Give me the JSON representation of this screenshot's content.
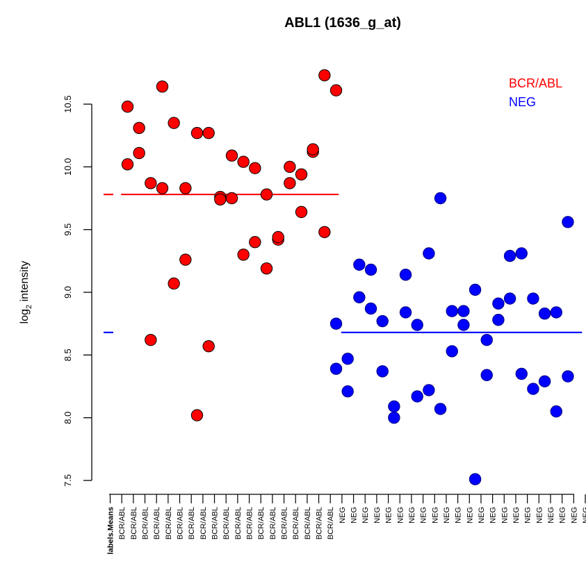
{
  "chart_data": {
    "type": "scatter",
    "title": "ABL1 (1636_g_at)",
    "ylabel_main": "log",
    "ylabel_sub": "2",
    "ylabel_rest": " intensity",
    "ylim": [
      7.5,
      10.75
    ],
    "yticks": [
      7.5,
      8.0,
      8.5,
      9.0,
      9.5,
      10.0,
      10.5
    ],
    "ytick_labels": [
      "7.5",
      "8.0",
      "8.5",
      "9.0",
      "9.5",
      "10.0",
      "10.5"
    ],
    "categories": [
      "labels.Means",
      "BCR/ABL",
      "BCR/ABL",
      "BCR/ABL",
      "BCR/ABL",
      "BCR/ABL",
      "BCR/ABL",
      "BCR/ABL",
      "BCR/ABL",
      "BCR/ABL",
      "BCR/ABL",
      "BCR/ABL",
      "BCR/ABL",
      "BCR/ABL",
      "BCR/ABL",
      "BCR/ABL",
      "BCR/ABL",
      "BCR/ABL",
      "BCR/ABL",
      "BCR/ABL",
      "NEG",
      "NEG",
      "NEG",
      "NEG",
      "NEG",
      "NEG",
      "NEG",
      "NEG",
      "NEG",
      "NEG",
      "NEG",
      "NEG",
      "NEG",
      "NEG",
      "NEG",
      "NEG",
      "NEG",
      "NEG",
      "NEG",
      "NEG",
      "NEG",
      "NEG"
    ],
    "means": [
      {
        "name": "BCR/ABL",
        "value": 9.78,
        "color": "#ff0000"
      },
      {
        "name": "NEG",
        "value": 8.68,
        "color": "#0000ff"
      }
    ],
    "series": [
      {
        "name": "BCR/ABL",
        "color": "#ff0000",
        "points": [
          {
            "x": 2,
            "y": 10.48
          },
          {
            "x": 2,
            "y": 10.02
          },
          {
            "x": 3,
            "y": 10.11
          },
          {
            "x": 3,
            "y": 10.31
          },
          {
            "x": 4,
            "y": 9.87
          },
          {
            "x": 4,
            "y": 8.62
          },
          {
            "x": 5,
            "y": 9.83
          },
          {
            "x": 5,
            "y": 10.64
          },
          {
            "x": 6,
            "y": 10.35
          },
          {
            "x": 6,
            "y": 9.07
          },
          {
            "x": 7,
            "y": 9.26
          },
          {
            "x": 7,
            "y": 9.83
          },
          {
            "x": 8,
            "y": 10.27
          },
          {
            "x": 8,
            "y": 8.02
          },
          {
            "x": 9,
            "y": 10.27
          },
          {
            "x": 9,
            "y": 8.57
          },
          {
            "x": 10,
            "y": 9.76
          },
          {
            "x": 10,
            "y": 9.74
          },
          {
            "x": 11,
            "y": 10.09
          },
          {
            "x": 11,
            "y": 9.75
          },
          {
            "x": 12,
            "y": 10.04
          },
          {
            "x": 12,
            "y": 9.3
          },
          {
            "x": 13,
            "y": 9.99
          },
          {
            "x": 13,
            "y": 9.4
          },
          {
            "x": 14,
            "y": 9.19
          },
          {
            "x": 14,
            "y": 9.78
          },
          {
            "x": 15,
            "y": 9.42
          },
          {
            "x": 15,
            "y": 9.44
          },
          {
            "x": 16,
            "y": 10.0
          },
          {
            "x": 16,
            "y": 9.87
          },
          {
            "x": 17,
            "y": 9.64
          },
          {
            "x": 17,
            "y": 9.94
          },
          {
            "x": 18,
            "y": 10.12
          },
          {
            "x": 18,
            "y": 10.14
          },
          {
            "x": 19,
            "y": 10.73
          },
          {
            "x": 19,
            "y": 9.48
          },
          {
            "x": 20,
            "y": 10.61
          }
        ]
      },
      {
        "name": "NEG",
        "color": "#0000ff",
        "points": [
          {
            "x": 20,
            "y": 8.39
          },
          {
            "x": 20,
            "y": 8.75
          },
          {
            "x": 21,
            "y": 8.21
          },
          {
            "x": 21,
            "y": 8.47
          },
          {
            "x": 22,
            "y": 9.22
          },
          {
            "x": 22,
            "y": 8.96
          },
          {
            "x": 23,
            "y": 9.18
          },
          {
            "x": 23,
            "y": 8.87
          },
          {
            "x": 24,
            "y": 8.37
          },
          {
            "x": 24,
            "y": 8.77
          },
          {
            "x": 25,
            "y": 8.0
          },
          {
            "x": 25,
            "y": 8.09
          },
          {
            "x": 26,
            "y": 8.84
          },
          {
            "x": 26,
            "y": 9.14
          },
          {
            "x": 27,
            "y": 8.17
          },
          {
            "x": 27,
            "y": 8.74
          },
          {
            "x": 28,
            "y": 9.31
          },
          {
            "x": 28,
            "y": 8.22
          },
          {
            "x": 29,
            "y": 9.75
          },
          {
            "x": 29,
            "y": 8.07
          },
          {
            "x": 30,
            "y": 8.85
          },
          {
            "x": 30,
            "y": 8.53
          },
          {
            "x": 31,
            "y": 8.74
          },
          {
            "x": 31,
            "y": 8.85
          },
          {
            "x": 32,
            "y": 7.51
          },
          {
            "x": 32,
            "y": 9.02
          },
          {
            "x": 33,
            "y": 8.62
          },
          {
            "x": 33,
            "y": 8.34
          },
          {
            "x": 34,
            "y": 8.78
          },
          {
            "x": 34,
            "y": 8.91
          },
          {
            "x": 35,
            "y": 9.29
          },
          {
            "x": 35,
            "y": 8.95
          },
          {
            "x": 36,
            "y": 8.35
          },
          {
            "x": 36,
            "y": 9.31
          },
          {
            "x": 37,
            "y": 8.23
          },
          {
            "x": 37,
            "y": 8.95
          },
          {
            "x": 38,
            "y": 8.83
          },
          {
            "x": 38,
            "y": 8.29
          },
          {
            "x": 39,
            "y": 8.84
          },
          {
            "x": 39,
            "y": 8.05
          },
          {
            "x": 40,
            "y": 9.56
          },
          {
            "x": 40,
            "y": 8.33
          }
        ]
      }
    ],
    "legend": {
      "position": "top-right",
      "entries": [
        {
          "label": "BCR/ABL",
          "color": "#ff0000"
        },
        {
          "label": "NEG",
          "color": "#0000ff"
        }
      ]
    },
    "grid": false
  }
}
